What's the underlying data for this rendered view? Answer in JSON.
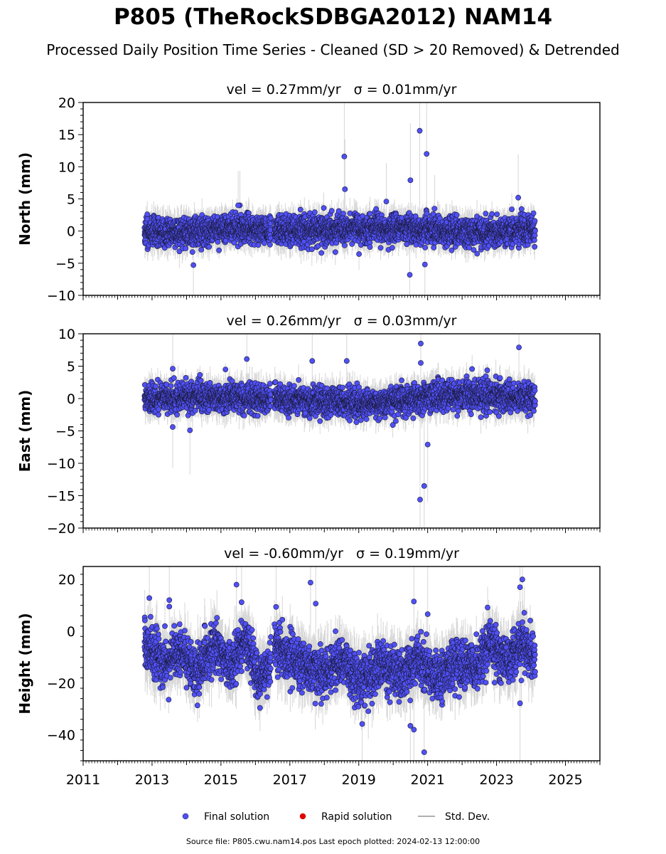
{
  "chart_data": {
    "type": "scatter",
    "title": "P805 (TheRockSDBGA2012) NAM14",
    "subtitle": "Processed Daily Position Time Series - Cleaned (SD > 20 Removed) & Detrended",
    "footer": "Source file: P805.cwu.nam14.pos  Last epoch plotted: 2024-02-13 12:00:00",
    "xlim": [
      2011,
      2026
    ],
    "xticks": [
      "2011",
      "2013",
      "2015",
      "2017",
      "2019",
      "2021",
      "2023",
      "2025"
    ],
    "data_span": [
      2012.78,
      2024.12
    ],
    "gap": [
      2016.45,
      2016.55
    ],
    "colors": {
      "final": "#5050f5",
      "rapid": "#e00000",
      "stddev": "#b0b0b0"
    },
    "legend": {
      "placement": "bottom-center",
      "items": [
        {
          "label": "Final solution",
          "color": "#5050f5",
          "kind": "dot"
        },
        {
          "label": "Rapid solution",
          "color": "#e00000",
          "kind": "dot"
        },
        {
          "label": "Std. Dev.",
          "color": "#b0b0b0",
          "kind": "line"
        }
      ]
    },
    "panels": [
      {
        "name": "north",
        "ylabel": "North (mm)",
        "title_vel": "vel = 0.27mm/yr",
        "title_sigma": "σ = 0.01mm/yr",
        "ylim": [
          -10,
          20
        ],
        "yticks": [
          -10,
          -5,
          0,
          5,
          10,
          15,
          20
        ],
        "baseline": [
          [
            2012.8,
            0
          ],
          [
            2014.0,
            -0.5
          ],
          [
            2015.5,
            0.5
          ],
          [
            2016.4,
            0
          ],
          [
            2018.5,
            0.3
          ],
          [
            2020.6,
            0.5
          ],
          [
            2022.0,
            -0.3
          ],
          [
            2024.1,
            0.3
          ]
        ],
        "scatter_sd": 1.1,
        "point_count": 3200,
        "outliers": [
          [
            2018.58,
            11.6
          ],
          [
            2018.6,
            6.5
          ],
          [
            2020.77,
            15.6
          ],
          [
            2020.97,
            12.0
          ],
          [
            2020.5,
            7.9
          ],
          [
            2023.63,
            5.2
          ],
          [
            2015.55,
            4.0
          ],
          [
            2015.5,
            4.0
          ],
          [
            2014.2,
            -5.3
          ],
          [
            2020.48,
            -6.8
          ],
          [
            2020.92,
            -5.2
          ],
          [
            2019.8,
            4.6
          ],
          [
            2021.2,
            3.5
          ]
        ]
      },
      {
        "name": "east",
        "ylabel": "East (mm)",
        "title_vel": "vel = 0.26mm/yr",
        "title_sigma": "σ = 0.03mm/yr",
        "ylim": [
          -20,
          10
        ],
        "yticks": [
          -20,
          -15,
          -10,
          -5,
          0,
          5,
          10
        ],
        "baseline": [
          [
            2012.8,
            0
          ],
          [
            2014.5,
            0.3
          ],
          [
            2016.4,
            0
          ],
          [
            2018.0,
            -0.5
          ],
          [
            2019.5,
            -0.8
          ],
          [
            2021.0,
            0.3
          ],
          [
            2022.5,
            0.6
          ],
          [
            2024.1,
            0
          ]
        ],
        "scatter_sd": 1.1,
        "point_count": 3200,
        "outliers": [
          [
            2020.8,
            8.5
          ],
          [
            2023.65,
            7.9
          ],
          [
            2015.75,
            6.1
          ],
          [
            2017.65,
            5.8
          ],
          [
            2018.65,
            5.8
          ],
          [
            2020.78,
            -15.6
          ],
          [
            2020.9,
            -13.5
          ],
          [
            2021.0,
            -7.1
          ],
          [
            2014.1,
            -4.9
          ],
          [
            2013.6,
            -4.4
          ],
          [
            2013.6,
            4.6
          ],
          [
            2020.8,
            5.5
          ]
        ]
      },
      {
        "name": "height",
        "ylabel": "Height (mm)",
        "title_vel": "vel = -0.60mm/yr",
        "title_sigma": "σ = 0.19mm/yr",
        "ylim": [
          -50,
          25
        ],
        "yticks": [
          -40,
          -20,
          0,
          20
        ],
        "baseline": [
          [
            2012.8,
            -5
          ],
          [
            2013.3,
            -12
          ],
          [
            2013.8,
            -8
          ],
          [
            2014.3,
            -16
          ],
          [
            2014.8,
            -5
          ],
          [
            2015.3,
            -14
          ],
          [
            2015.7,
            -3
          ],
          [
            2016.1,
            -18
          ],
          [
            2016.4,
            -14
          ],
          [
            2016.55,
            -5
          ],
          [
            2017.2,
            -12
          ],
          [
            2018.0,
            -16
          ],
          [
            2018.6,
            -12
          ],
          [
            2019.1,
            -20
          ],
          [
            2019.7,
            -12
          ],
          [
            2020.2,
            -18
          ],
          [
            2020.7,
            -10
          ],
          [
            2021.3,
            -18
          ],
          [
            2021.8,
            -12
          ],
          [
            2022.4,
            -14
          ],
          [
            2022.8,
            -5
          ],
          [
            2023.3,
            -12
          ],
          [
            2023.7,
            -5
          ],
          [
            2024.1,
            -10
          ]
        ],
        "scatter_sd": 4.6,
        "point_count": 3200,
        "outliers": [
          [
            2015.45,
            18.0
          ],
          [
            2017.6,
            18.8
          ],
          [
            2023.75,
            20.0
          ],
          [
            2023.68,
            17.0
          ],
          [
            2012.92,
            12.8
          ],
          [
            2013.5,
            12.0
          ],
          [
            2013.5,
            9.5
          ],
          [
            2015.6,
            11.2
          ],
          [
            2020.6,
            11.5
          ],
          [
            2020.9,
            -46.7
          ],
          [
            2020.5,
            -36.5
          ],
          [
            2020.6,
            -38.0
          ],
          [
            2019.1,
            -35.8
          ],
          [
            2023.68,
            -27.8
          ],
          [
            2021.0,
            6.6
          ],
          [
            2017.75,
            10.7
          ],
          [
            2016.6,
            9.4
          ]
        ]
      }
    ]
  }
}
